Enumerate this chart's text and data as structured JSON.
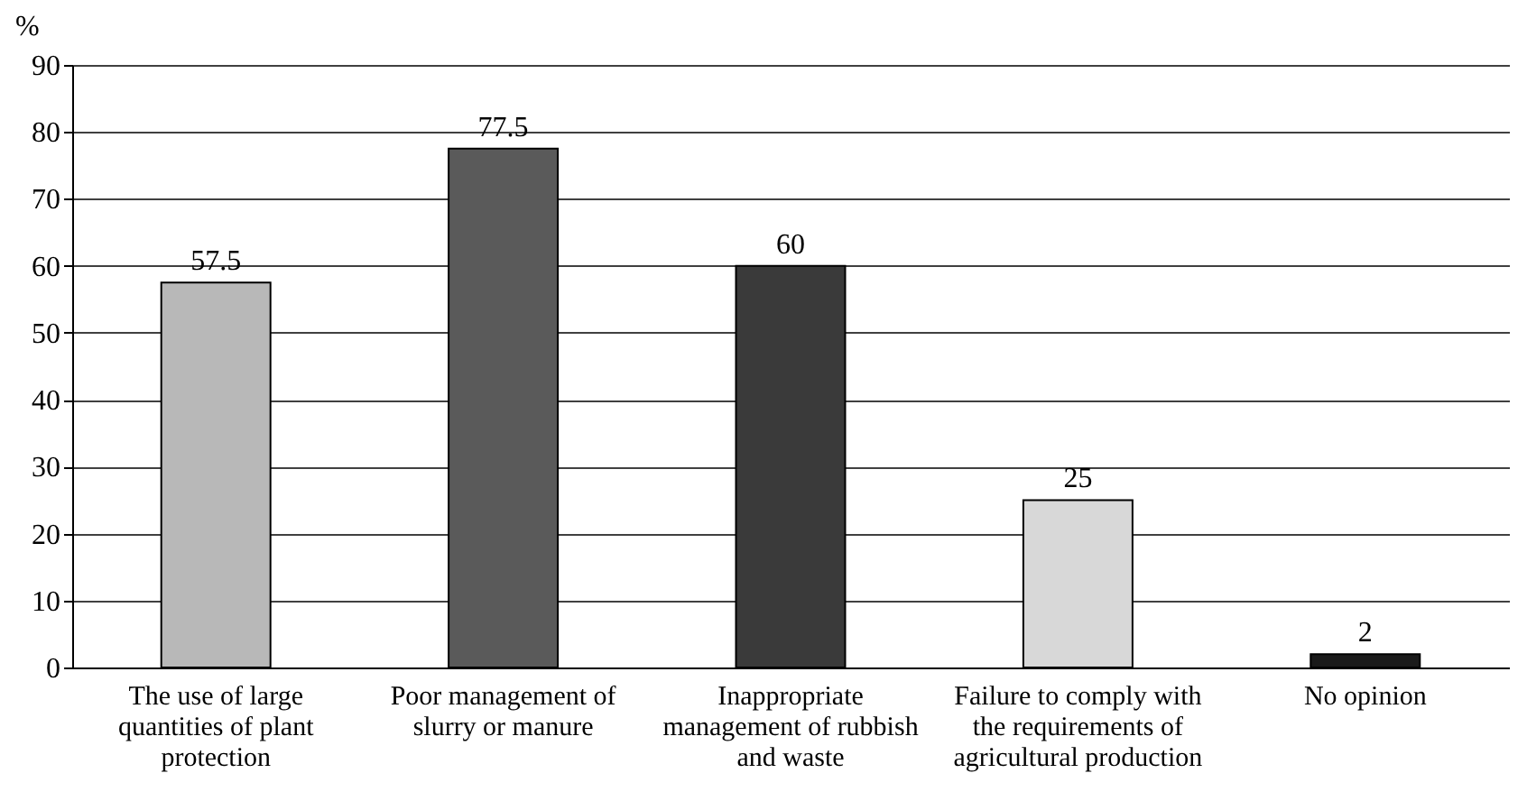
{
  "chart_data": {
    "type": "bar",
    "ylabel": "%",
    "categories": [
      "The use of large quantities of plant protection",
      "Poor management of slurry or manure",
      "Inappropriate management of rubbish and waste",
      "Failure to comply with the requirements of agricultural production",
      "No opinion"
    ],
    "values": [
      57.5,
      77.5,
      60,
      25,
      2
    ],
    "colors": [
      "#b8b8b8",
      "#5a5a5a",
      "#3a3a3a",
      "#d8d8d8",
      "#1a1a1a"
    ],
    "ylim": [
      0,
      90
    ],
    "yticks": [
      0,
      10,
      20,
      30,
      40,
      50,
      60,
      70,
      80,
      90
    ],
    "grid": "y",
    "data_labels": true
  }
}
